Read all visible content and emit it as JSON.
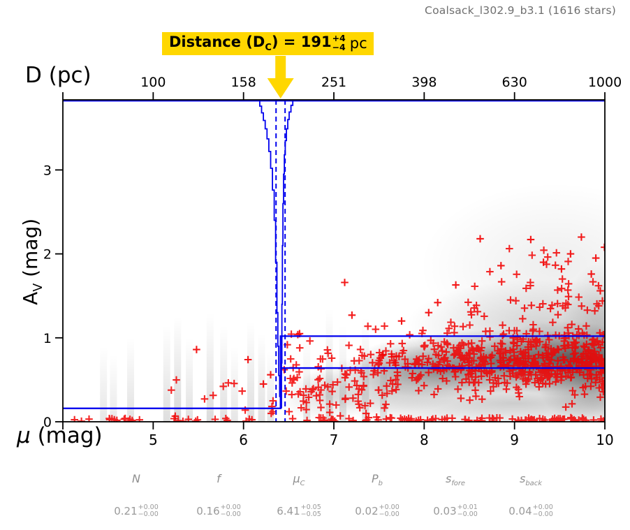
{
  "title": "Coalsack_l302.9_b3.1 (1616 stars)",
  "annotation": {
    "main_pre": "Distance (D",
    "main_sub": "C",
    "main_post": ") = ",
    "value": "191",
    "err_plus": "+4",
    "err_minus": "−4",
    "unit": "pc",
    "box_color": "#FFD700"
  },
  "axes": {
    "top": {
      "label": "D (pc)",
      "ticks": [
        "100",
        "158",
        "251",
        "398",
        "630",
        "1000"
      ]
    },
    "bottom": {
      "label_mu": "μ",
      "label_rest": " (mag)",
      "ticks": [
        "5",
        "6",
        "7",
        "8",
        "9",
        "10"
      ]
    },
    "left": {
      "label_base": "A",
      "label_sub": "V",
      "label_rest": " (mag)",
      "ticks": [
        "0",
        "1",
        "2",
        "3"
      ]
    }
  },
  "parameters": [
    {
      "name_main": "N",
      "name_sub": "",
      "value": "0.21",
      "plus": "+0.00",
      "minus": "−0.00"
    },
    {
      "name_main": "f",
      "name_sub": "",
      "value": "0.16",
      "plus": "+0.00",
      "minus": "−0.00"
    },
    {
      "name_main": "μ",
      "name_sub": "C",
      "value": "6.41",
      "plus": "+0.05",
      "minus": "−0.05"
    },
    {
      "name_main": "P",
      "name_sub": "b",
      "value": "0.02",
      "plus": "+0.00",
      "minus": "−0.00"
    },
    {
      "name_main": "s",
      "name_sub": "fore",
      "value": "0.03",
      "plus": "+0.01",
      "minus": "−0.00"
    },
    {
      "name_main": "s",
      "name_sub": "back",
      "value": "0.04",
      "plus": "+0.00",
      "minus": "−0.00"
    }
  ],
  "chart_data": {
    "type": "scatter",
    "title": "Coalsack_l302.9_b3.1 (1616 stars)",
    "xlabel": "μ (mag)",
    "ylabel": "A_V (mag)",
    "top_xlabel": "D (pc)",
    "xlim": [
      4.0,
      10.0
    ],
    "ylim": [
      0,
      3.835
    ],
    "x_tick_values": [
      5,
      6,
      7,
      8,
      9,
      10
    ],
    "top_tick_values": [
      5,
      6,
      7,
      8,
      9,
      10
    ],
    "y_tick_values": [
      0,
      1,
      2,
      3
    ],
    "corner_mu": 4.0,
    "n_stars": 1616,
    "distance_pc": {
      "value": 191,
      "err_plus": 4,
      "err_minus": 4
    },
    "colors": {
      "model": "#0000ee",
      "marker": "#f20000",
      "arrow": "#FFD700",
      "density": "#000000"
    },
    "model": {
      "mu_c": 6.41,
      "fore_av": 0.16,
      "back_av_upper": 1.02,
      "back_av_mid": 0.64,
      "dashed_mu": [
        6.36,
        6.46
      ]
    },
    "posterior_outline": {
      "left": [
        [
          6.18,
          3.835
        ],
        [
          6.18,
          3.76
        ],
        [
          6.2,
          3.76
        ],
        [
          6.2,
          3.68
        ],
        [
          6.22,
          3.68
        ],
        [
          6.22,
          3.59
        ],
        [
          6.24,
          3.59
        ],
        [
          6.24,
          3.49
        ],
        [
          6.26,
          3.49
        ],
        [
          6.26,
          3.37
        ],
        [
          6.28,
          3.37
        ],
        [
          6.28,
          3.22
        ],
        [
          6.3,
          3.22
        ],
        [
          6.3,
          3.02
        ],
        [
          6.32,
          3.02
        ],
        [
          6.32,
          2.76
        ],
        [
          6.34,
          2.76
        ],
        [
          6.34,
          2.4
        ],
        [
          6.355,
          2.4
        ],
        [
          6.355,
          1.9
        ],
        [
          6.37,
          1.9
        ],
        [
          6.37,
          1.3
        ],
        [
          6.38,
          1.3
        ],
        [
          6.38,
          0.9
        ],
        [
          6.39,
          0.9
        ],
        [
          6.39,
          0.55
        ],
        [
          6.4,
          0.55
        ],
        [
          6.4,
          0.3
        ],
        [
          6.41,
          0.3
        ],
        [
          6.41,
          0.16
        ]
      ],
      "right": [
        [
          6.545,
          3.835
        ],
        [
          6.545,
          3.77
        ],
        [
          6.525,
          3.77
        ],
        [
          6.525,
          3.69
        ],
        [
          6.505,
          3.69
        ],
        [
          6.505,
          3.6
        ],
        [
          6.49,
          3.6
        ],
        [
          6.49,
          3.49
        ],
        [
          6.475,
          3.49
        ],
        [
          6.475,
          3.35
        ],
        [
          6.462,
          3.35
        ],
        [
          6.462,
          3.18
        ],
        [
          6.452,
          3.18
        ],
        [
          6.452,
          2.95
        ],
        [
          6.443,
          2.95
        ],
        [
          6.443,
          2.6
        ],
        [
          6.436,
          2.6
        ],
        [
          6.436,
          2.1
        ],
        [
          6.43,
          2.1
        ],
        [
          6.43,
          1.4
        ],
        [
          6.425,
          1.4
        ],
        [
          6.425,
          0.7
        ],
        [
          6.42,
          0.7
        ],
        [
          6.42,
          0.16
        ]
      ]
    },
    "scatter": {
      "seed": 42,
      "marker": "plus",
      "clusters": [
        {
          "name": "rug-left",
          "n": 26,
          "mu": [
            4.12,
            6.4
          ],
          "mu_skew": 1.0,
          "av": {
            "type": "uniform",
            "range": [
              0.005,
              0.045
            ]
          }
        },
        {
          "name": "left-sparse",
          "n": 14,
          "mu": [
            5.1,
            6.4
          ],
          "mu_skew": 1.0,
          "av": {
            "type": "uniform",
            "range": [
              0.06,
              0.5
            ]
          }
        },
        {
          "name": "mid",
          "n": 115,
          "mu": [
            6.43,
            7.7
          ],
          "mu_skew": 1.0,
          "av": {
            "type": "gauss",
            "mean": 0.5,
            "sd": 0.27,
            "clip": [
              0.04,
              1.2
            ]
          }
        },
        {
          "name": "right-dense",
          "n": 560,
          "mu": [
            7.45,
            10.0
          ],
          "mu_skew": 0.6,
          "av": {
            "type": "gauss",
            "mean": 0.73,
            "sd": 0.19,
            "clip": [
              0.15,
              1.42
            ]
          }
        },
        {
          "name": "right-upper",
          "n": 52,
          "mu": [
            8.2,
            10.0
          ],
          "mu_skew": 0.7,
          "av": {
            "type": "gauss",
            "mean": 1.5,
            "sd": 0.27,
            "clip": [
              1.12,
              2.25
            ]
          }
        },
        {
          "name": "rug-right",
          "n": 95,
          "mu": [
            6.45,
            10.0
          ],
          "mu_skew": 0.75,
          "av": {
            "type": "uniform",
            "range": [
              0.005,
              0.05
            ]
          }
        }
      ],
      "outliers": [
        [
          5.48,
          0.86
        ],
        [
          6.05,
          0.74
        ],
        [
          6.22,
          0.45
        ],
        [
          6.3,
          0.56
        ],
        [
          7.12,
          1.66
        ],
        [
          7.2,
          1.27
        ],
        [
          6.62,
          1.05
        ],
        [
          6.45,
          0.62
        ],
        [
          8.62,
          2.18
        ],
        [
          9.18,
          2.17
        ],
        [
          9.74,
          2.2
        ],
        [
          9.9,
          1.95
        ],
        [
          8.85,
          1.86
        ],
        [
          9.32,
          1.9
        ],
        [
          9.52,
          1.82
        ],
        [
          9.62,
          2.0
        ],
        [
          8.35,
          1.63
        ],
        [
          8.15,
          1.42
        ],
        [
          9.95,
          1.56
        ],
        [
          9.85,
          1.76
        ],
        [
          8.05,
          1.3
        ],
        [
          7.75,
          1.2
        ]
      ]
    },
    "density": {
      "streaks": [
        [
          4.45,
          0.9,
          0.1
        ],
        [
          4.56,
          0.8,
          0.09
        ],
        [
          4.75,
          1.0,
          0.12
        ],
        [
          5.15,
          1.15,
          0.13
        ],
        [
          5.27,
          1.25,
          0.16
        ],
        [
          5.4,
          1.0,
          0.12
        ],
        [
          5.63,
          1.3,
          0.14
        ],
        [
          5.78,
          1.15,
          0.12
        ],
        [
          5.9,
          0.9,
          0.1
        ],
        [
          6.08,
          1.2,
          0.13
        ],
        [
          6.2,
          1.05,
          0.12
        ],
        [
          6.3,
          0.85,
          0.1
        ],
        [
          6.7,
          1.0,
          0.1
        ],
        [
          6.95,
          1.35,
          0.13
        ],
        [
          7.1,
          1.15,
          0.12
        ],
        [
          7.35,
          1.25,
          0.11
        ],
        [
          7.55,
          1.05,
          0.1
        ]
      ],
      "blobs": [
        [
          8.9,
          0.72,
          1.7,
          0.38,
          0.45
        ],
        [
          9.55,
          0.75,
          0.95,
          0.45,
          0.42
        ],
        [
          8.2,
          0.6,
          1.1,
          0.32,
          0.28
        ],
        [
          9.3,
          1.15,
          1.5,
          0.55,
          0.16
        ],
        [
          9.85,
          0.5,
          0.6,
          0.55,
          0.3
        ],
        [
          7.6,
          0.45,
          0.95,
          0.35,
          0.18
        ],
        [
          9.0,
          0.22,
          2.1,
          0.32,
          0.2
        ],
        [
          9.45,
          1.85,
          1.5,
          1.0,
          0.07
        ],
        [
          6.9,
          0.3,
          0.5,
          0.3,
          0.12
        ],
        [
          9.95,
          1.0,
          0.45,
          0.9,
          0.2
        ]
      ]
    }
  }
}
